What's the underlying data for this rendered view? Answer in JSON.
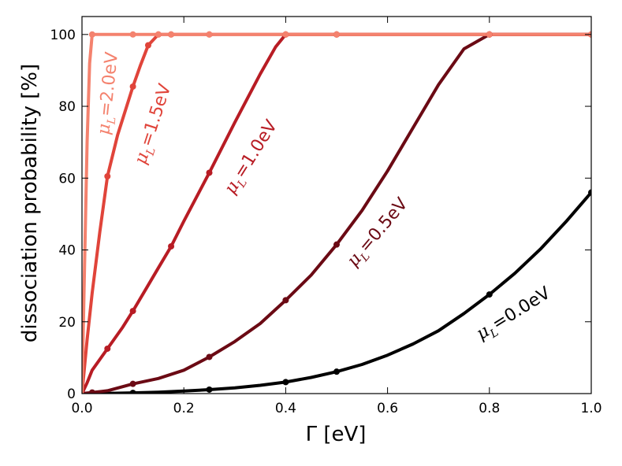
{
  "chart_data": {
    "type": "line",
    "xlabel": "Γ [eV]",
    "ylabel": "dissociation probability [%]",
    "xlim": [
      0.0,
      1.0
    ],
    "ylim": [
      0,
      105
    ],
    "x_ticks": [
      "0.0",
      "0.2",
      "0.4",
      "0.6",
      "0.8",
      "1.0"
    ],
    "y_ticks": [
      "0",
      "20",
      "40",
      "60",
      "80",
      "100"
    ],
    "grid": false,
    "legend": "none",
    "series": [
      {
        "name": "μL=0.0eV",
        "color": "#000000",
        "x": [
          0.0,
          0.02,
          0.05,
          0.1,
          0.15,
          0.2,
          0.25,
          0.3,
          0.35,
          0.4,
          0.45,
          0.5,
          0.55,
          0.6,
          0.65,
          0.7,
          0.75,
          0.8,
          0.85,
          0.9,
          0.95,
          1.0
        ],
        "values": [
          0,
          0.02,
          0.05,
          0.2,
          0.4,
          0.7,
          1.1,
          1.6,
          2.3,
          3.2,
          4.5,
          6.1,
          8.1,
          10.7,
          13.8,
          17.5,
          22.3,
          27.6,
          33.5,
          40.2,
          47.8,
          56.0
        ]
      },
      {
        "name": "μL=0.5eV",
        "color": "#6b0a14",
        "x": [
          0.0,
          0.02,
          0.05,
          0.1,
          0.15,
          0.2,
          0.25,
          0.3,
          0.35,
          0.4,
          0.45,
          0.5,
          0.55,
          0.6,
          0.65,
          0.7,
          0.75,
          0.8,
          1.0
        ],
        "values": [
          0,
          0.3,
          0.8,
          2.7,
          4.2,
          6.5,
          10.2,
          14.5,
          19.5,
          26.0,
          33.0,
          41.5,
          51.0,
          62.0,
          74.0,
          86.0,
          96.0,
          100,
          100
        ]
      },
      {
        "name": "μL=1.0eV",
        "color": "#b81c24",
        "x": [
          0.0,
          0.01,
          0.02,
          0.05,
          0.08,
          0.1,
          0.125,
          0.15,
          0.175,
          0.2,
          0.25,
          0.3,
          0.35,
          0.38,
          0.4,
          0.5,
          0.8,
          1.0
        ],
        "values": [
          0,
          3,
          6.5,
          12.5,
          18.5,
          23.0,
          29.0,
          35.0,
          41.0,
          48.0,
          61.5,
          75.5,
          89.0,
          96.5,
          100,
          100,
          100,
          100
        ]
      },
      {
        "name": "μL=1.5eV",
        "color": "#e0443a",
        "x": [
          0.0,
          0.01,
          0.02,
          0.035,
          0.05,
          0.07,
          0.1,
          0.115,
          0.13,
          0.15,
          0.175,
          0.25,
          0.4,
          0.5,
          0.8,
          1.0
        ],
        "values": [
          0,
          15,
          28,
          45,
          60.5,
          72.0,
          85.5,
          91.5,
          97.0,
          100,
          100,
          100,
          100,
          100,
          100,
          100
        ]
      },
      {
        "name": "μL=2.0eV",
        "color": "#f4826e",
        "x": [
          0.0,
          0.005,
          0.01,
          0.015,
          0.02,
          0.05,
          0.1,
          0.15,
          0.175,
          0.25,
          0.4,
          0.5,
          0.8,
          1.0
        ],
        "values": [
          0,
          35,
          70,
          92,
          100,
          100,
          100,
          100,
          100,
          100,
          100,
          100,
          100,
          100
        ]
      }
    ],
    "markers": [
      {
        "series": 0,
        "x": [
          0.02,
          0.1,
          0.25,
          0.4,
          0.5,
          0.8,
          1.0
        ],
        "values": [
          0.02,
          0.2,
          1.1,
          3.2,
          6.1,
          27.6,
          56.0
        ]
      },
      {
        "series": 1,
        "x": [
          0.02,
          0.1,
          0.25,
          0.4,
          0.5,
          0.8,
          1.0
        ],
        "values": [
          0.3,
          2.7,
          10.2,
          26.0,
          41.5,
          100,
          100
        ]
      },
      {
        "series": 2,
        "x": [
          0.05,
          0.1,
          0.175,
          0.25,
          0.4,
          0.5,
          0.8,
          1.0
        ],
        "values": [
          12.5,
          23.0,
          41.0,
          61.5,
          100,
          100,
          100,
          100
        ]
      },
      {
        "series": 3,
        "x": [
          0.05,
          0.1,
          0.13,
          0.15,
          0.175,
          0.25,
          0.4,
          0.5,
          0.8,
          1.0
        ],
        "values": [
          60.5,
          85.5,
          97.0,
          100,
          100,
          100,
          100,
          100,
          100,
          100
        ]
      },
      {
        "series": 4,
        "x": [
          0.02,
          0.1,
          0.15,
          0.175,
          0.25,
          0.4,
          0.5,
          0.8,
          1.0
        ],
        "values": [
          100,
          100,
          100,
          100,
          100,
          100,
          100,
          100,
          100
        ]
      }
    ],
    "annotations": [
      {
        "base": "μ",
        "sub": "L",
        "rest": "=2.0eV",
        "color": "#f4826e"
      },
      {
        "base": "μ",
        "sub": "L",
        "rest": "=1.5eV",
        "color": "#e0443a"
      },
      {
        "base": "μ",
        "sub": "L",
        "rest": "=1.0eV",
        "color": "#b81c24"
      },
      {
        "base": "μ",
        "sub": "L",
        "rest": "=0.5eV",
        "color": "#6b0a14"
      },
      {
        "base": "μ",
        "sub": "L",
        "rest": "=0.0eV",
        "color": "#000000"
      }
    ]
  }
}
